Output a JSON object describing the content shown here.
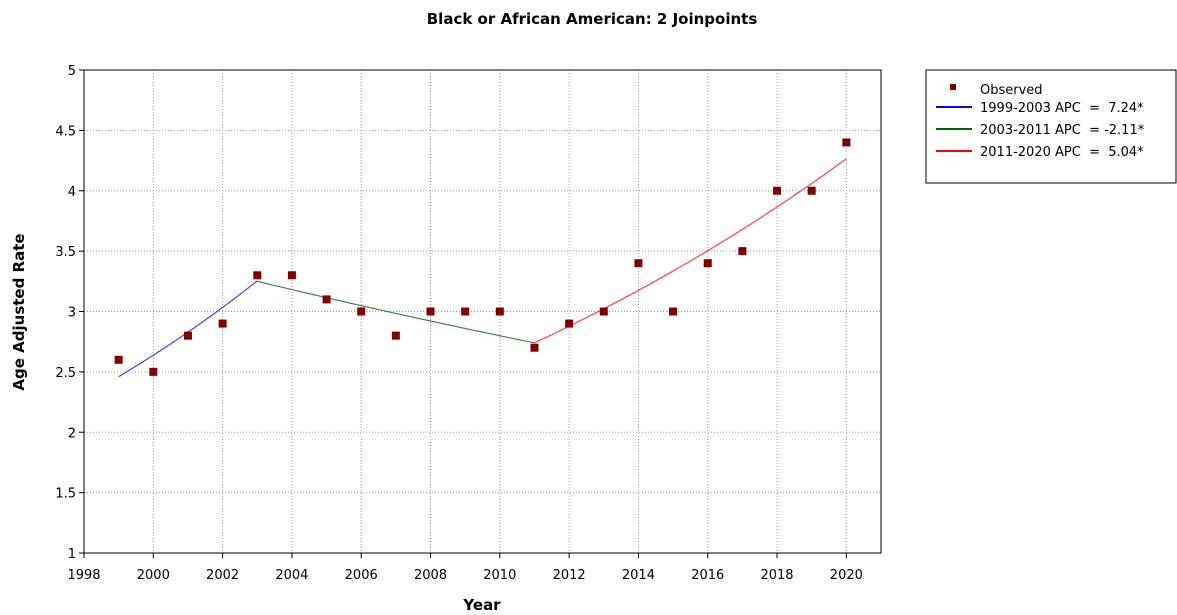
{
  "chart_data": {
    "type": "line",
    "title": "Black or African American: 2 Joinpoints",
    "xlabel": "Year",
    "ylabel": "Age Adjusted Rate",
    "xlim": [
      1998,
      2021
    ],
    "ylim": [
      1,
      5
    ],
    "x_ticks": [
      1998,
      2000,
      2002,
      2004,
      2006,
      2008,
      2010,
      2012,
      2014,
      2016,
      2018,
      2020
    ],
    "y_ticks": [
      1,
      1.5,
      2,
      2.5,
      3,
      3.5,
      4,
      4.5,
      5
    ],
    "grid": true,
    "legend_position": "right-top",
    "observed": {
      "name": "Observed",
      "color": "#7f0000",
      "x": [
        1999,
        2000,
        2001,
        2002,
        2003,
        2004,
        2005,
        2006,
        2007,
        2008,
        2009,
        2010,
        2011,
        2012,
        2013,
        2014,
        2015,
        2016,
        2017,
        2018,
        2019,
        2020
      ],
      "y": [
        2.6,
        2.5,
        2.8,
        2.9,
        3.3,
        3.3,
        3.1,
        3.0,
        2.8,
        3.0,
        3.0,
        3.0,
        2.7,
        2.9,
        3.0,
        3.4,
        3.0,
        3.4,
        3.5,
        4.0,
        4.0,
        4.4
      ]
    },
    "series": [
      {
        "name": "1999-2003 APC  =  7.24*",
        "color": "#0000ff",
        "x_start": 1999,
        "x_end": 2003,
        "y_start": 2.46,
        "apc": 7.24
      },
      {
        "name": "2003-2011 APC  = -2.11*",
        "color": "#006400",
        "x_start": 2003,
        "x_end": 2011,
        "y_start": 3.25,
        "apc": -2.11
      },
      {
        "name": "2011-2020 APC  =  5.04*",
        "color": "#ff0000",
        "x_start": 2011,
        "x_end": 2020,
        "y_start": 2.74,
        "apc": 5.04
      }
    ]
  }
}
